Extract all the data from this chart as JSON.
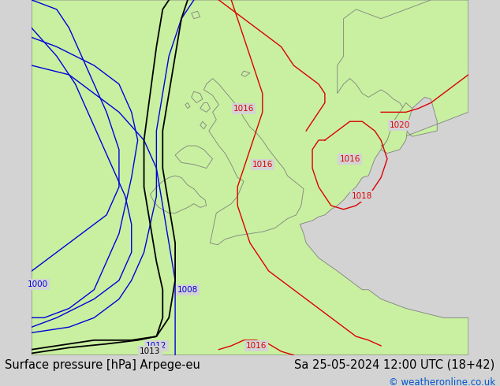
{
  "title_left": "Surface pressure [hPa] Arpege-eu",
  "title_right": "Sa 25-05-2024 12:00 UTC (18+42)",
  "copyright": "© weatheronline.co.uk",
  "bg_color": "#d3d3d3",
  "land_color": "#c8f0a0",
  "coast_color": "#808080",
  "font_size_title": 10.5,
  "font_size_copyright": 8.5,
  "blue": "#0000dd",
  "black": "#000000",
  "red": "#dd0000",
  "map_xlim": [
    -20,
    15
  ],
  "map_ylim": [
    44,
    63
  ]
}
